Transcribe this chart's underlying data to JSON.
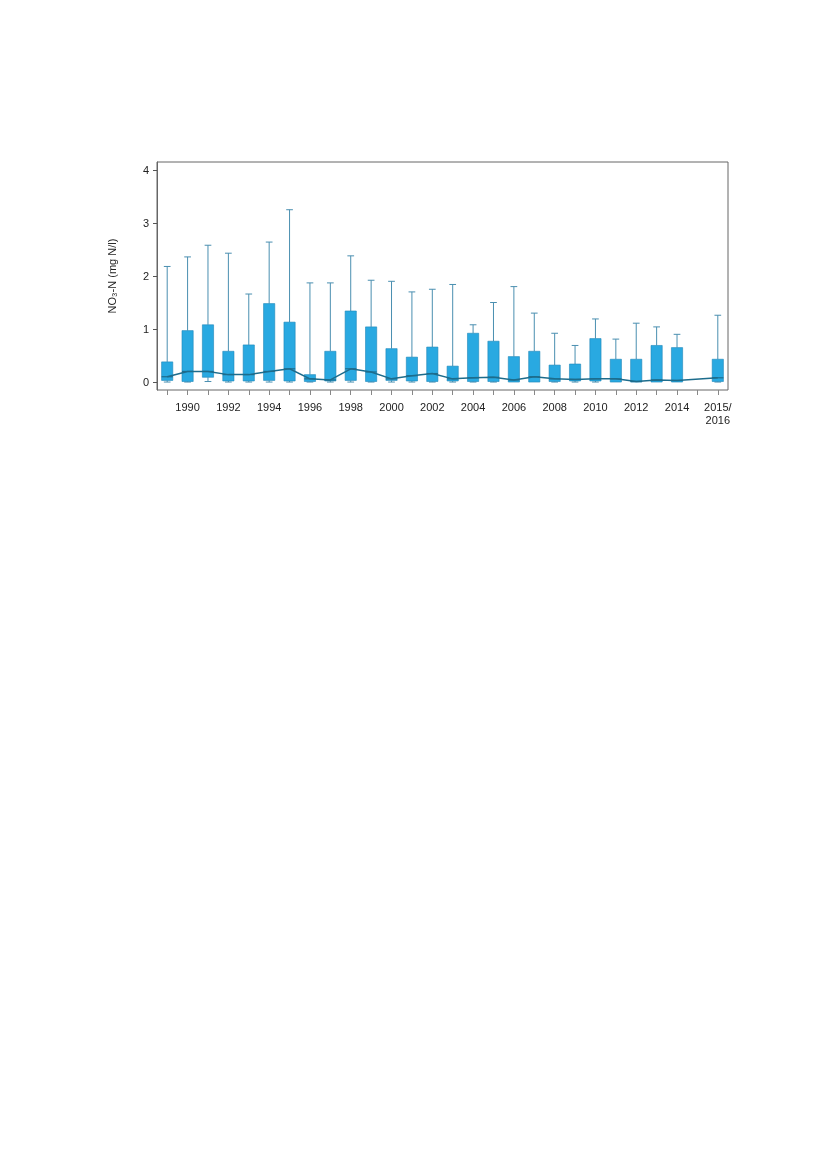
{
  "chart_data": {
    "type": "box",
    "ylabel": "NO₃-N (mg N/l)",
    "categories": [
      null,
      "1990",
      null,
      "1992",
      null,
      "1994",
      null,
      "1996",
      null,
      "1998",
      null,
      "2000",
      null,
      "2002",
      null,
      "2004",
      null,
      "2006",
      null,
      "2008",
      null,
      "2010",
      null,
      "2012",
      null,
      "2014",
      null,
      "2015/2016"
    ],
    "color": "#29a9e1",
    "ylim": [
      -0.15,
      4.15
    ],
    "yticks": [
      0,
      1,
      2,
      3,
      4
    ],
    "grid": false,
    "series": [
      {
        "type": "line",
        "color": "#1d6c8c",
        "values": [
          0.1,
          0.2,
          0.2,
          0.14,
          0.14,
          0.2,
          0.25,
          0.06,
          0.04,
          0.25,
          0.19,
          0.06,
          0.12,
          0.16,
          0.06,
          0.08,
          0.09,
          0.04,
          0.1,
          0.06,
          0.05,
          0.06,
          0.06,
          0.01,
          0.04,
          0.03,
          null,
          0.08
        ]
      }
    ],
    "boxes": [
      {
        "low": 0,
        "q1": 0.03,
        "median": 0.1,
        "q3": 0.38,
        "high": 2.18
      },
      {
        "low": 0,
        "q1": 0.01,
        "median": 0.2,
        "q3": 0.97,
        "high": 2.36
      },
      {
        "low": 0.01,
        "q1": 0.09,
        "median": 0.2,
        "q3": 1.08,
        "high": 2.58
      },
      {
        "low": 0,
        "q1": 0.02,
        "median": 0.14,
        "q3": 0.58,
        "high": 2.43
      },
      {
        "low": 0,
        "q1": 0.02,
        "median": 0.14,
        "q3": 0.7,
        "high": 1.66
      },
      {
        "low": 0,
        "q1": 0.03,
        "median": 0.2,
        "q3": 1.48,
        "high": 2.64
      },
      {
        "low": 0,
        "q1": 0.02,
        "median": 0.25,
        "q3": 1.13,
        "high": 3.25
      },
      {
        "low": 0,
        "q1": 0.01,
        "median": 0.06,
        "q3": 0.14,
        "high": 1.87
      },
      {
        "low": 0,
        "q1": 0.02,
        "median": 0.04,
        "q3": 0.58,
        "high": 1.87
      },
      {
        "low": 0,
        "q1": 0.03,
        "median": 0.25,
        "q3": 1.34,
        "high": 2.38
      },
      {
        "low": 0,
        "q1": 0.01,
        "median": 0.19,
        "q3": 1.04,
        "high": 1.92
      },
      {
        "low": 0,
        "q1": 0.03,
        "median": 0.06,
        "q3": 0.63,
        "high": 1.9
      },
      {
        "low": 0,
        "q1": 0.02,
        "median": 0.12,
        "q3": 0.47,
        "high": 1.7
      },
      {
        "low": 0,
        "q1": 0.01,
        "median": 0.16,
        "q3": 0.66,
        "high": 1.75
      },
      {
        "low": 0,
        "q1": 0.02,
        "median": 0.06,
        "q3": 0.3,
        "high": 1.84
      },
      {
        "low": 0,
        "q1": 0.01,
        "median": 0.08,
        "q3": 0.92,
        "high": 1.08
      },
      {
        "low": 0,
        "q1": 0.01,
        "median": 0.09,
        "q3": 0.77,
        "high": 1.5
      },
      {
        "low": 0,
        "q1": 0,
        "median": 0.04,
        "q3": 0.48,
        "high": 1.8
      },
      {
        "low": 0,
        "q1": 0,
        "median": 0.1,
        "q3": 0.58,
        "high": 1.3
      },
      {
        "low": 0,
        "q1": 0.01,
        "median": 0.06,
        "q3": 0.32,
        "high": 0.92
      },
      {
        "low": 0,
        "q1": 0.02,
        "median": 0.05,
        "q3": 0.34,
        "high": 0.69
      },
      {
        "low": 0,
        "q1": 0.02,
        "median": 0.06,
        "q3": 0.82,
        "high": 1.19
      },
      {
        "low": 0,
        "q1": 0,
        "median": 0.06,
        "q3": 0.43,
        "high": 0.81
      },
      {
        "low": 0,
        "q1": 0,
        "median": 0.01,
        "q3": 0.43,
        "high": 1.11
      },
      {
        "low": 0,
        "q1": 0,
        "median": 0.04,
        "q3": 0.69,
        "high": 1.04
      },
      {
        "low": 0,
        "q1": 0,
        "median": 0.03,
        "q3": 0.65,
        "high": 0.9
      },
      null,
      {
        "low": 0,
        "q1": 0.01,
        "median": 0.08,
        "q3": 0.43,
        "high": 1.26
      }
    ]
  }
}
